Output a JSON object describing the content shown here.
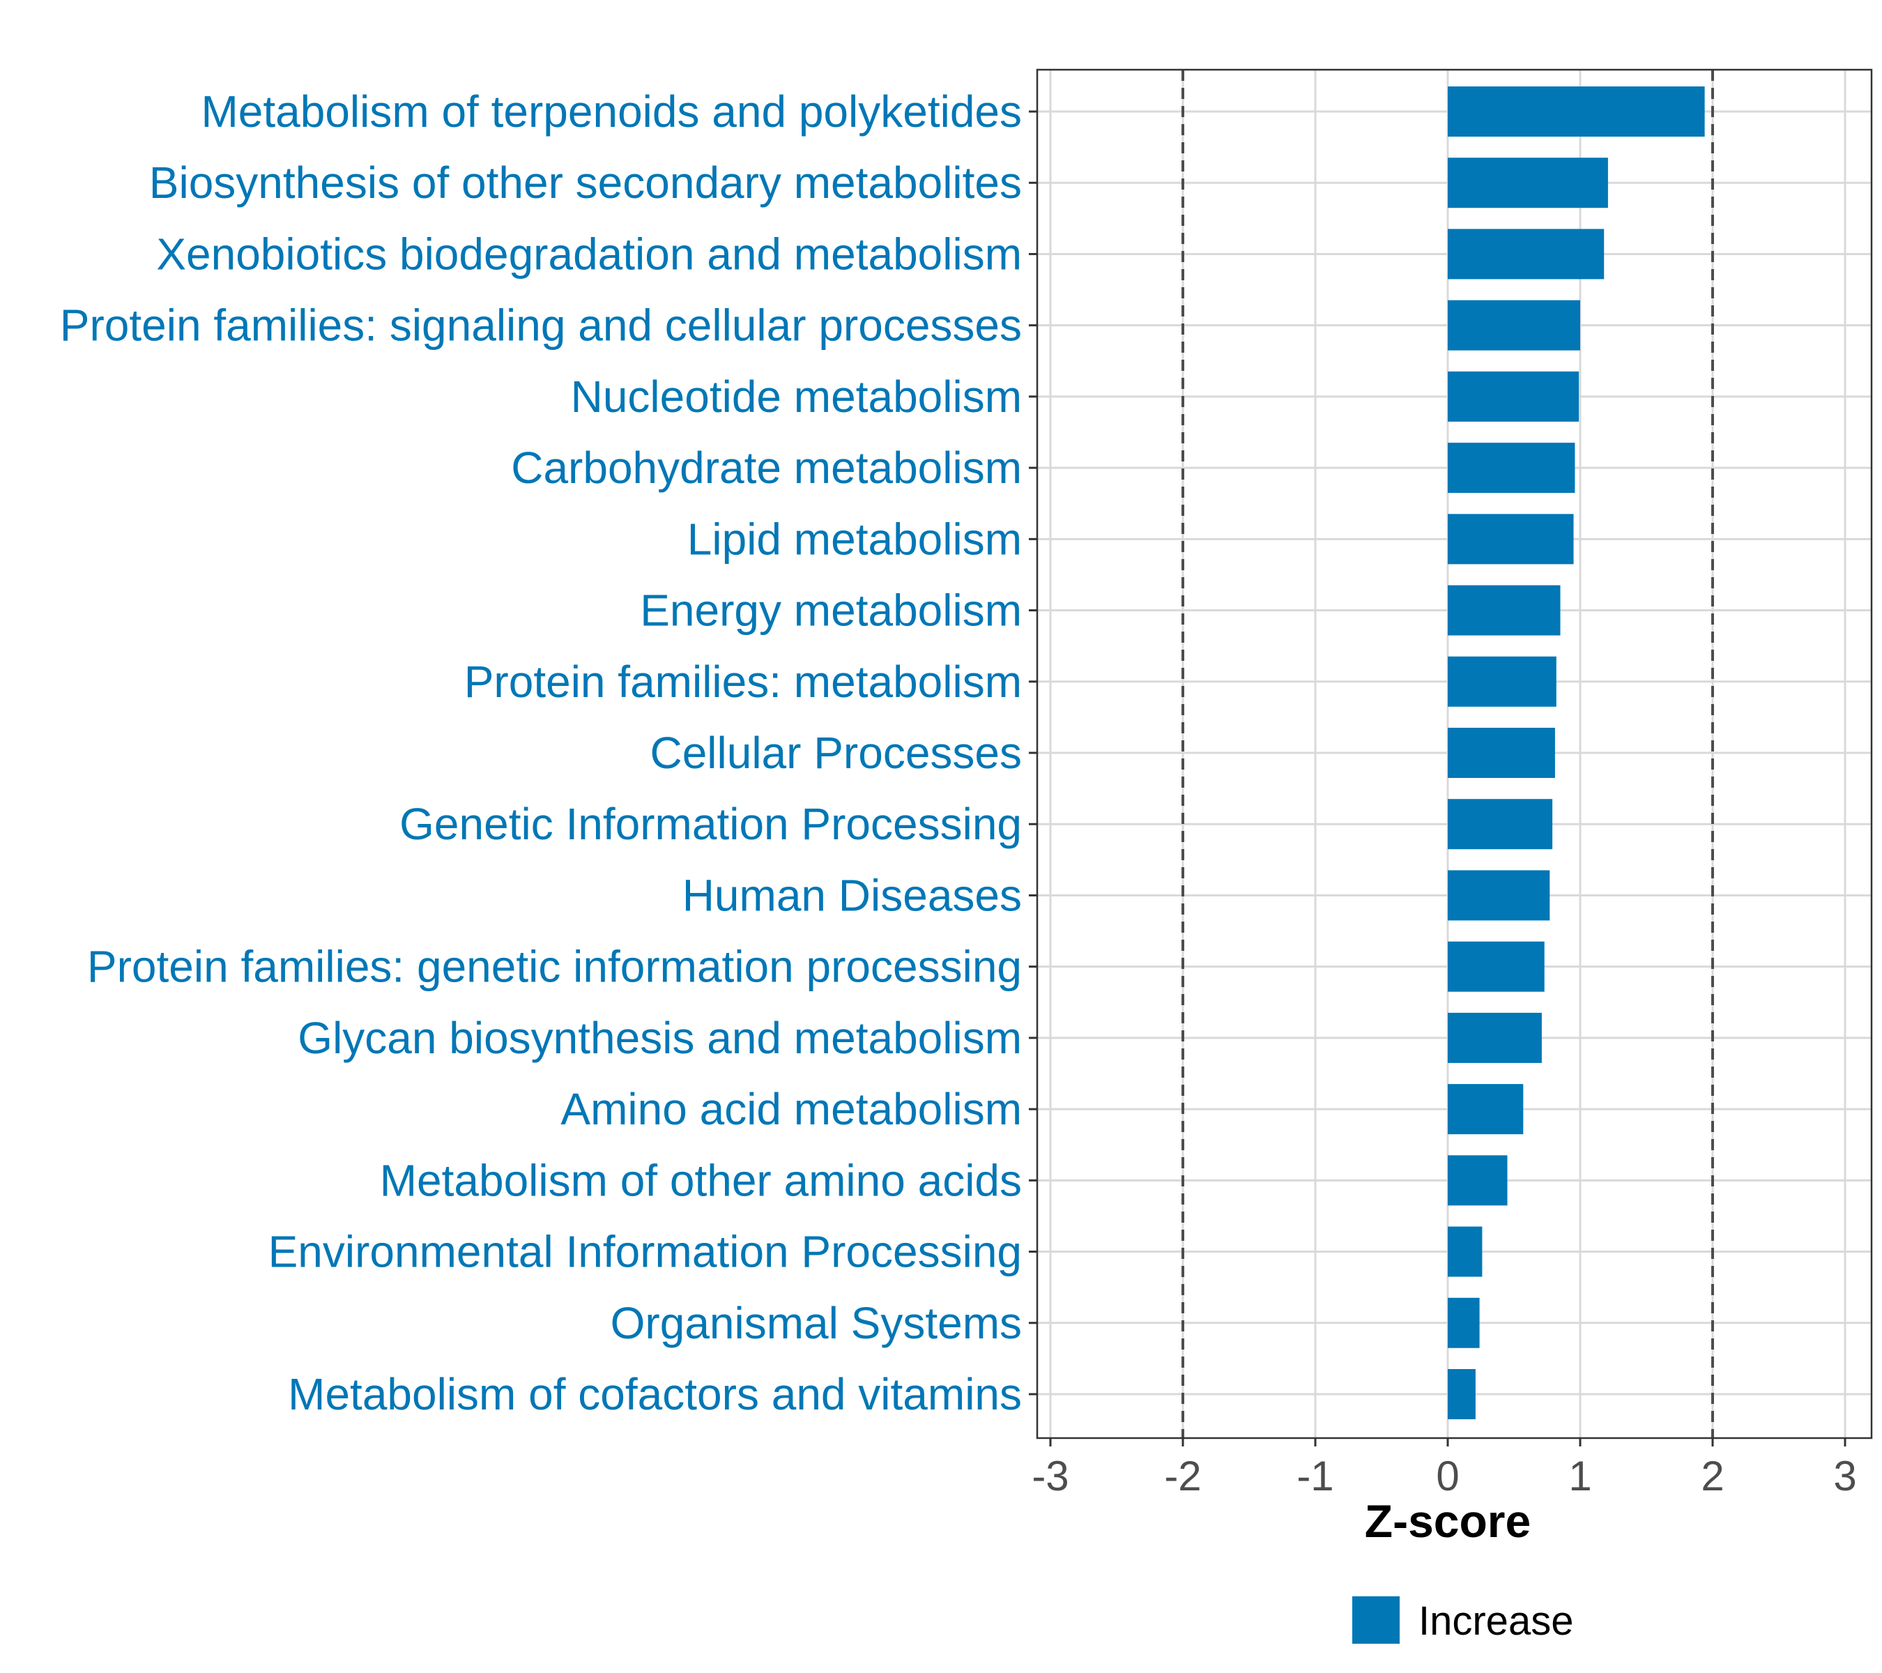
{
  "chart_data": {
    "type": "bar",
    "orientation": "horizontal",
    "title": "",
    "xlabel": "Z-score",
    "ylabel": "",
    "xlim": [
      -3.1,
      3.2
    ],
    "xticks": [
      -3,
      -2,
      -1,
      0,
      1,
      2,
      3
    ],
    "xtick_labels": [
      "-3",
      "-2",
      "-1",
      "0",
      "1",
      "2",
      "3"
    ],
    "reference_lines": [
      -2,
      2
    ],
    "grid": true,
    "categories": [
      "Metabolism of terpenoids and polyketides",
      "Biosynthesis of other secondary metabolites",
      "Xenobiotics biodegradation and metabolism",
      "Protein families: signaling and cellular processes",
      "Nucleotide metabolism",
      "Carbohydrate metabolism",
      "Lipid metabolism",
      "Energy metabolism",
      "Protein families: metabolism",
      "Cellular Processes",
      "Genetic Information Processing",
      "Human Diseases",
      "Protein families: genetic information processing",
      "Glycan biosynthesis and metabolism",
      "Amino acid metabolism",
      "Metabolism of other amino acids",
      "Environmental Information Processing",
      "Organismal Systems",
      "Metabolism of cofactors and vitamins"
    ],
    "values": [
      1.94,
      1.21,
      1.18,
      1.0,
      0.99,
      0.96,
      0.95,
      0.85,
      0.82,
      0.81,
      0.79,
      0.77,
      0.73,
      0.71,
      0.57,
      0.45,
      0.26,
      0.24,
      0.21
    ],
    "series": [
      {
        "name": "Increase",
        "color": "#0177b6"
      }
    ],
    "legend": {
      "position": "bottom",
      "entries": [
        "Increase"
      ]
    }
  },
  "colors": {
    "bar": "#0177b6",
    "label": "#0177b6",
    "grid": "#d9d9d9",
    "refline": "#4d4d4d",
    "tick": "#4d4d4d"
  }
}
